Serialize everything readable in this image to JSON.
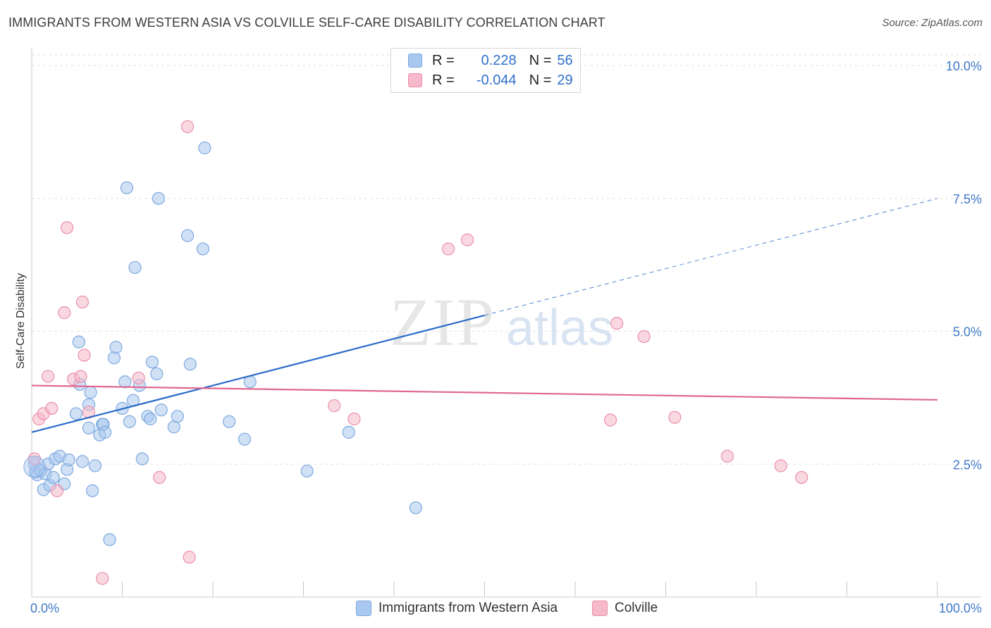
{
  "title": "IMMIGRANTS FROM WESTERN ASIA VS COLVILLE SELF-CARE DISABILITY CORRELATION CHART",
  "source": "Source: ZipAtlas.com",
  "watermark": {
    "zip": "ZIP",
    "atlas": "atlas"
  },
  "legend_stats": [
    {
      "r_label": "R =",
      "r_value": "0.228",
      "n_label": "N =",
      "n_value": "56",
      "color": "#a9c8ef",
      "border": "#7ea9df"
    },
    {
      "r_label": "R =",
      "r_value": "-0.044",
      "n_label": "N =",
      "n_value": "29",
      "color": "#f6b8cb",
      "border": "#ea8fab"
    }
  ],
  "bottom_legend": [
    {
      "label": "Immigrants from Western Asia",
      "color": "#a9c8ef",
      "border": "#7ea9df"
    },
    {
      "label": "Colville",
      "color": "#f6b8cb",
      "border": "#ea8fab"
    }
  ],
  "chart_data": {
    "type": "scatter",
    "ylabel": "Self-Care Disability",
    "xlim": [
      0,
      100
    ],
    "ylim": [
      0,
      10.2
    ],
    "x_tick_labels": [
      "0.0%",
      "100.0%"
    ],
    "y_ticks": [
      2.5,
      5.0,
      7.5,
      10.0
    ],
    "y_tick_labels": [
      "2.5%",
      "5.0%",
      "7.5%",
      "10.0%"
    ],
    "grid": true,
    "series": [
      {
        "name": "Immigrants from Western Asia",
        "color": "#a9c8ef",
        "stroke": "#7ea9df",
        "line_color": "#2a6ac8",
        "trend": {
          "x": [
            0,
            100
          ],
          "y": [
            3.1,
            7.5
          ],
          "solid_until_x": 50
        },
        "points": [
          [
            0.3,
            2.5
          ],
          [
            0.4,
            2.35
          ],
          [
            0.6,
            2.3
          ],
          [
            1.0,
            2.38
          ],
          [
            1.3,
            2.02
          ],
          [
            1.5,
            2.32
          ],
          [
            1.8,
            2.5
          ],
          [
            2.0,
            2.1
          ],
          [
            2.4,
            2.25
          ],
          [
            2.6,
            2.6
          ],
          [
            3.1,
            2.65
          ],
          [
            3.6,
            2.13
          ],
          [
            3.9,
            2.4
          ],
          [
            4.1,
            2.58
          ],
          [
            4.9,
            3.45
          ],
          [
            5.3,
            4.0
          ],
          [
            5.2,
            4.8
          ],
          [
            5.6,
            2.55
          ],
          [
            6.3,
            3.62
          ],
          [
            6.3,
            3.18
          ],
          [
            6.5,
            3.85
          ],
          [
            6.7,
            2.0
          ],
          [
            7.0,
            2.47
          ],
          [
            7.5,
            3.05
          ],
          [
            7.8,
            3.25
          ],
          [
            7.9,
            3.25
          ],
          [
            8.1,
            3.1
          ],
          [
            8.6,
            1.08
          ],
          [
            9.1,
            4.5
          ],
          [
            9.3,
            4.7
          ],
          [
            10.0,
            3.55
          ],
          [
            10.3,
            4.05
          ],
          [
            10.8,
            3.3
          ],
          [
            11.2,
            3.7
          ],
          [
            11.4,
            6.2
          ],
          [
            11.9,
            3.98
          ],
          [
            12.2,
            2.6
          ],
          [
            12.8,
            3.4
          ],
          [
            13.1,
            3.35
          ],
          [
            13.3,
            4.42
          ],
          [
            13.8,
            4.2
          ],
          [
            14.3,
            3.52
          ],
          [
            15.7,
            3.2
          ],
          [
            16.1,
            3.4
          ],
          [
            17.5,
            4.38
          ],
          [
            10.5,
            7.7
          ],
          [
            14.0,
            7.5
          ],
          [
            17.2,
            6.8
          ],
          [
            18.9,
            6.55
          ],
          [
            19.1,
            8.45
          ],
          [
            21.8,
            3.3
          ],
          [
            23.5,
            2.97
          ],
          [
            24.1,
            4.05
          ],
          [
            30.4,
            2.37
          ],
          [
            35.0,
            3.1
          ],
          [
            42.4,
            1.68
          ]
        ]
      },
      {
        "name": "Colville",
        "color": "#f6b8cb",
        "stroke": "#ea8fab",
        "line_color": "#e0678f",
        "trend": {
          "x": [
            0,
            100
          ],
          "y": [
            3.98,
            3.71
          ],
          "solid_until_x": 100
        },
        "points": [
          [
            0.3,
            2.6
          ],
          [
            0.8,
            3.35
          ],
          [
            1.3,
            3.45
          ],
          [
            1.8,
            4.15
          ],
          [
            2.2,
            3.55
          ],
          [
            2.8,
            2.0
          ],
          [
            3.6,
            5.35
          ],
          [
            3.9,
            6.95
          ],
          [
            4.6,
            4.1
          ],
          [
            5.4,
            4.15
          ],
          [
            5.6,
            5.55
          ],
          [
            5.8,
            4.55
          ],
          [
            6.3,
            3.48
          ],
          [
            7.8,
            0.35
          ],
          [
            11.8,
            4.12
          ],
          [
            14.1,
            2.25
          ],
          [
            17.2,
            8.85
          ],
          [
            17.4,
            0.75
          ],
          [
            33.4,
            3.6
          ],
          [
            35.6,
            3.35
          ],
          [
            46.0,
            6.55
          ],
          [
            48.1,
            6.72
          ],
          [
            63.9,
            3.33
          ],
          [
            64.6,
            5.15
          ],
          [
            67.6,
            4.9
          ],
          [
            71.0,
            3.38
          ],
          [
            76.8,
            2.65
          ],
          [
            82.7,
            2.47
          ],
          [
            85.0,
            2.25
          ]
        ]
      }
    ]
  }
}
